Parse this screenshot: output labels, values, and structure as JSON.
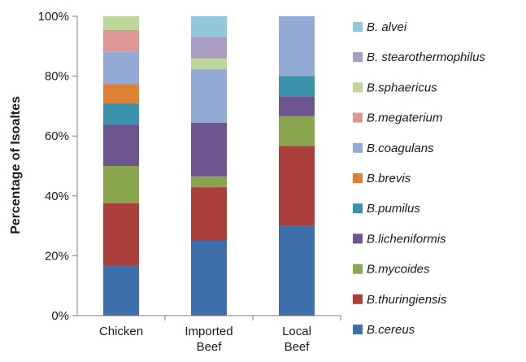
{
  "chart_data": {
    "type": "bar",
    "stacked": true,
    "normalized": true,
    "ylabel": "Percentage of Isoaltes",
    "ylim": [
      0,
      100
    ],
    "yticks": [
      "0%",
      "20%",
      "40%",
      "60%",
      "80%",
      "100%"
    ],
    "categories": [
      [
        "Chicken"
      ],
      [
        "Imported",
        "Beef"
      ],
      [
        "Local",
        "Beef"
      ]
    ],
    "grid": false,
    "legend_position": "right",
    "series": [
      {
        "name": "B.cereus",
        "color": "#3f6faa",
        "values": [
          16.7,
          25.0,
          30.0
        ]
      },
      {
        "name": "B.thuringiensis",
        "color": "#aa3f3c",
        "values": [
          20.8,
          17.9,
          26.7
        ]
      },
      {
        "name": "B.mycoides",
        "color": "#89a64e",
        "values": [
          12.5,
          3.6,
          10.0
        ]
      },
      {
        "name": "B.licheniformis",
        "color": "#6d5590",
        "values": [
          13.9,
          17.9,
          6.6
        ]
      },
      {
        "name": "B.pumilus",
        "color": "#3b93ab",
        "values": [
          7.0,
          0,
          6.7
        ]
      },
      {
        "name": "B.brevis",
        "color": "#dd8237",
        "values": [
          6.4,
          0,
          0
        ]
      },
      {
        "name": "B.coagulans",
        "color": "#93a9d6",
        "values": [
          10.8,
          17.9,
          20.0
        ]
      },
      {
        "name": "B.megaterium",
        "color": "#dd9896",
        "values": [
          7.3,
          0,
          0
        ]
      },
      {
        "name": "B.sphaericus",
        "color": "#bfd69b",
        "values": [
          4.6,
          3.6,
          0
        ]
      },
      {
        "name": "B. stearothermophilus",
        "color": "#aa9dc3",
        "values": [
          0,
          7.2,
          0
        ]
      },
      {
        "name": "B. alvei",
        "color": "#92c8d9",
        "values": [
          0,
          6.9,
          0
        ]
      }
    ]
  }
}
